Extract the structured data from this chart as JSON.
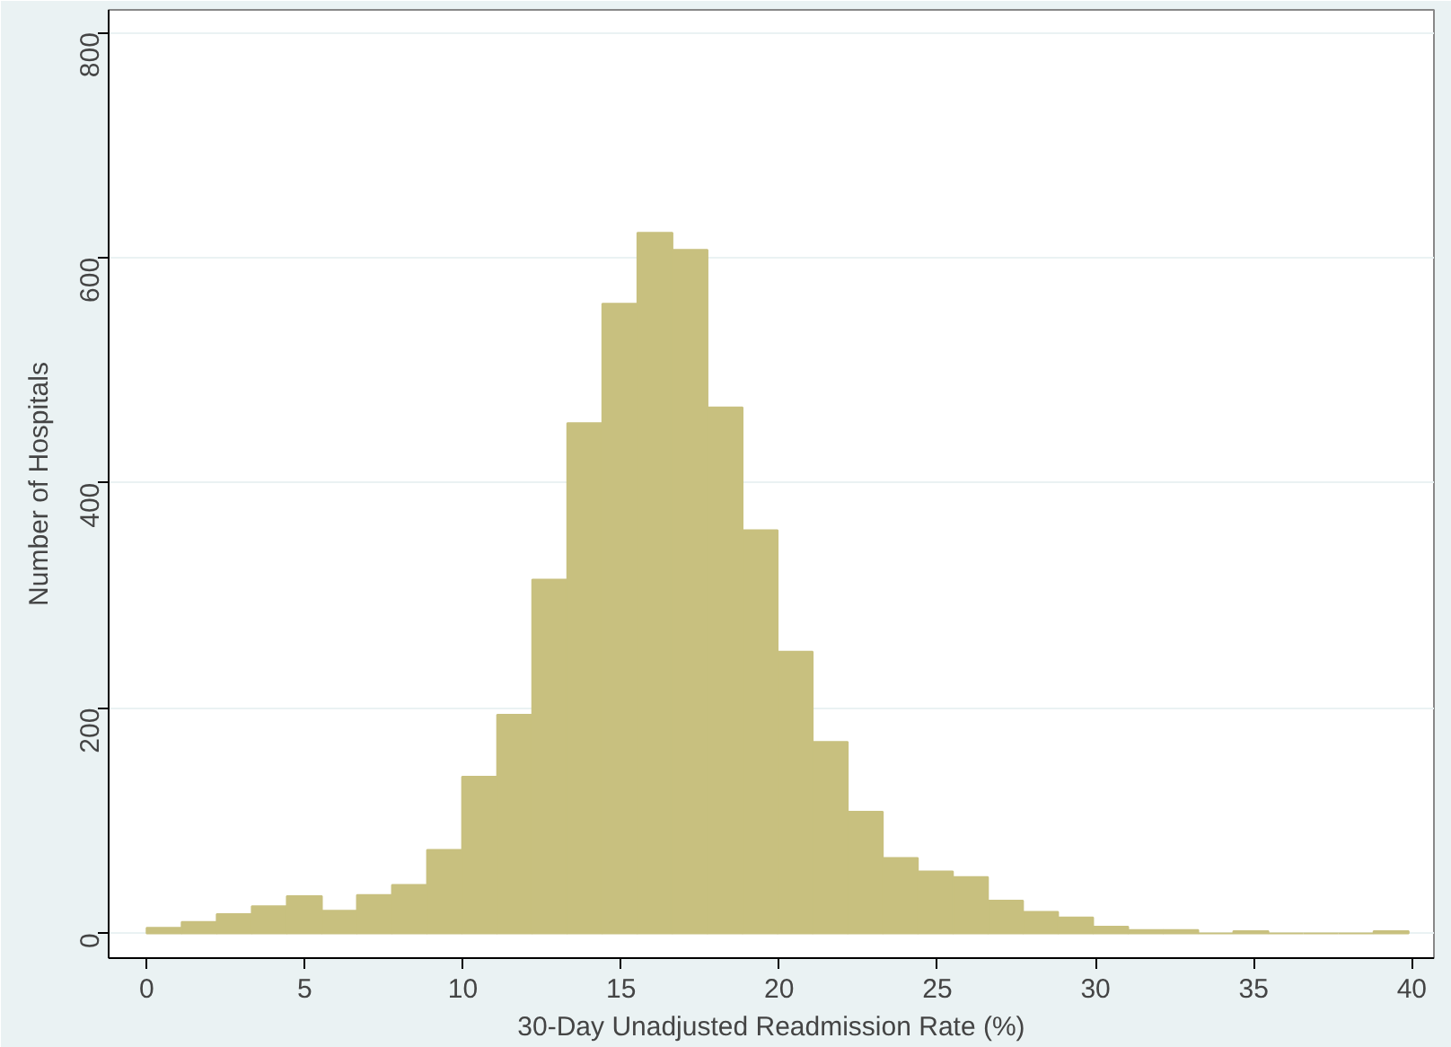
{
  "chart_data": {
    "type": "histogram",
    "xlabel": "30-Day Unadjusted Readmission Rate (%)",
    "ylabel": "Number of Hospitals",
    "bins": [
      0,
      1.108,
      2.217,
      3.325,
      4.433,
      5.542,
      6.65,
      7.758,
      8.867,
      9.975,
      11.083,
      12.192,
      13.3,
      14.408,
      15.517,
      16.625,
      17.733,
      18.842,
      19.95,
      21.058,
      22.167,
      23.275,
      24.383,
      25.492,
      26.6,
      27.708,
      28.817,
      29.925,
      31.033,
      32.142,
      33.25,
      34.358,
      35.467,
      36.575,
      37.683,
      38.792,
      39.9
    ],
    "values": [
      5,
      10,
      17,
      24,
      33,
      20,
      34,
      43,
      74,
      139,
      194,
      314,
      453,
      559,
      622,
      607,
      467,
      358,
      250,
      170,
      108,
      67,
      55,
      50,
      29,
      19,
      14,
      6,
      3,
      3,
      0,
      2,
      0,
      0,
      0,
      2
    ],
    "color": "#c8c07f",
    "xlim": [
      -1.2,
      40.7
    ],
    "ylim": [
      -22,
      820
    ],
    "xticks": [
      0,
      5,
      10,
      15,
      20,
      25,
      30,
      35,
      40
    ],
    "yticks": [
      0,
      200,
      400,
      600,
      800
    ],
    "grid": "y"
  }
}
